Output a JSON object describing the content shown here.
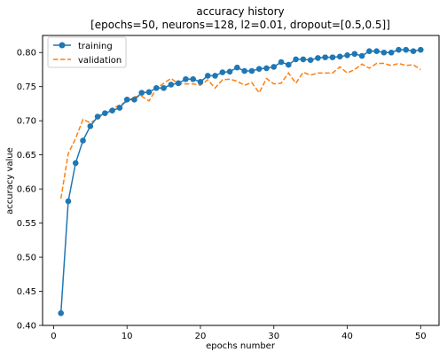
{
  "chart_data": {
    "type": "line",
    "title": "accuracy history",
    "subtitle": "[epochs=50, neurons=128, l2=0.01, dropout=[0.5,0.5]]",
    "xlabel": "epochs number",
    "ylabel": "accuracy value",
    "xlim": [
      -1.5,
      52.5
    ],
    "ylim": [
      0.4,
      0.825
    ],
    "xticks": [
      0,
      10,
      20,
      30,
      40,
      50
    ],
    "xtick_labels": [
      "0",
      "10",
      "20",
      "30",
      "40",
      "50"
    ],
    "yticks": [
      0.4,
      0.45,
      0.5,
      0.55,
      0.6,
      0.65,
      0.7,
      0.75,
      0.8
    ],
    "ytick_labels": [
      "0.40",
      "0.45",
      "0.50",
      "0.55",
      "0.60",
      "0.65",
      "0.70",
      "0.75",
      "0.80"
    ],
    "grid": false,
    "legend_position": "upper-left",
    "x": [
      1,
      2,
      3,
      4,
      5,
      6,
      7,
      8,
      9,
      10,
      11,
      12,
      13,
      14,
      15,
      16,
      17,
      18,
      19,
      20,
      21,
      22,
      23,
      24,
      25,
      26,
      27,
      28,
      29,
      30,
      31,
      32,
      33,
      34,
      35,
      36,
      37,
      38,
      39,
      40,
      41,
      42,
      43,
      44,
      45,
      46,
      47,
      48,
      49,
      50
    ],
    "series": [
      {
        "name": "training",
        "style": "solid-with-circle-markers",
        "color": "#1f77b4",
        "values": [
          0.418,
          0.582,
          0.638,
          0.671,
          0.692,
          0.706,
          0.711,
          0.715,
          0.719,
          0.731,
          0.731,
          0.741,
          0.742,
          0.748,
          0.748,
          0.753,
          0.755,
          0.761,
          0.761,
          0.757,
          0.766,
          0.766,
          0.771,
          0.772,
          0.778,
          0.773,
          0.773,
          0.776,
          0.777,
          0.779,
          0.786,
          0.782,
          0.79,
          0.79,
          0.789,
          0.792,
          0.793,
          0.793,
          0.794,
          0.796,
          0.798,
          0.795,
          0.802,
          0.802,
          0.8,
          0.8,
          0.804,
          0.804,
          0.802,
          0.804
        ]
      },
      {
        "name": "validation",
        "style": "dashed",
        "color": "#ff7f0e",
        "values": [
          0.586,
          0.652,
          0.674,
          0.702,
          0.697,
          0.703,
          0.712,
          0.718,
          0.723,
          0.728,
          0.735,
          0.736,
          0.729,
          0.747,
          0.755,
          0.762,
          0.754,
          0.754,
          0.754,
          0.752,
          0.76,
          0.748,
          0.76,
          0.761,
          0.758,
          0.752,
          0.756,
          0.741,
          0.762,
          0.754,
          0.755,
          0.77,
          0.755,
          0.771,
          0.767,
          0.77,
          0.77,
          0.77,
          0.779,
          0.77,
          0.775,
          0.783,
          0.777,
          0.784,
          0.784,
          0.781,
          0.784,
          0.781,
          0.782,
          0.775
        ]
      }
    ]
  }
}
